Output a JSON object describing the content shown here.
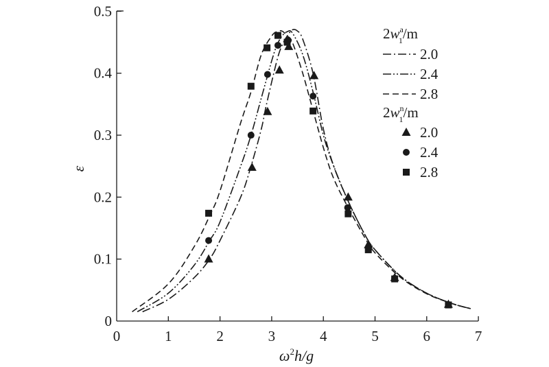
{
  "chart_data": {
    "type": "scatter",
    "title": "",
    "xlabel": {
      "pre": "ω",
      "sup": "2",
      "post": "h/g"
    },
    "ylabel": "ε",
    "xlim": [
      0,
      7
    ],
    "ylim": [
      0,
      0.5
    ],
    "x_ticks": [
      0,
      1,
      2,
      3,
      4,
      5,
      6,
      7
    ],
    "x_tick_labels": [
      "0",
      "1",
      "2",
      "3",
      "4",
      "5",
      "6",
      "7"
    ],
    "y_ticks": [
      0,
      0.1,
      0.2,
      0.3,
      0.4,
      0.5
    ],
    "y_tick_labels": [
      "0",
      "0.1",
      "0.2",
      "0.3",
      "0.4",
      "0.5"
    ],
    "grid": false,
    "legend_position": "top-right",
    "legend_groups": [
      {
        "base": "2w",
        "sup": "a",
        "sub": "1",
        "unit": "/m"
      },
      {
        "base": "2w",
        "sup": "n",
        "sub": "1",
        "unit": "/m"
      }
    ],
    "curves": [
      {
        "name": "2.0",
        "group": 0,
        "style": "dashdot",
        "x": [
          0.5,
          1.0,
          1.5,
          1.8,
          2.0,
          2.4,
          2.6,
          2.8,
          2.9,
          3.1,
          3.2,
          3.3,
          3.4,
          3.5,
          3.6,
          3.8,
          4.0,
          4.2,
          4.5,
          4.8,
          5.0,
          5.5,
          6.0,
          6.5,
          6.85
        ],
        "y": [
          0.015,
          0.035,
          0.07,
          0.1,
          0.13,
          0.2,
          0.25,
          0.31,
          0.35,
          0.42,
          0.445,
          0.46,
          0.47,
          0.468,
          0.455,
          0.4,
          0.31,
          0.25,
          0.19,
          0.14,
          0.115,
          0.072,
          0.045,
          0.028,
          0.02
        ]
      },
      {
        "name": "2.4",
        "group": 0,
        "style": "dashdotdot",
        "x": [
          0.4,
          1.0,
          1.5,
          1.8,
          2.0,
          2.4,
          2.6,
          2.8,
          3.0,
          3.1,
          3.2,
          3.3,
          3.4,
          3.6,
          3.8,
          4.0,
          4.2,
          4.5,
          4.8,
          5.0,
          5.5,
          6.0,
          6.5,
          6.85
        ],
        "y": [
          0.015,
          0.045,
          0.09,
          0.13,
          0.16,
          0.25,
          0.3,
          0.36,
          0.42,
          0.445,
          0.46,
          0.467,
          0.465,
          0.43,
          0.37,
          0.3,
          0.25,
          0.19,
          0.14,
          0.115,
          0.072,
          0.045,
          0.028,
          0.02
        ]
      },
      {
        "name": "2.8",
        "group": 0,
        "style": "dashed",
        "x": [
          0.3,
          1.0,
          1.5,
          1.8,
          2.0,
          2.4,
          2.6,
          2.8,
          3.0,
          3.1,
          3.2,
          3.3,
          3.4,
          3.6,
          3.8,
          4.0,
          4.2,
          4.5,
          4.8,
          5.0,
          5.5,
          6.0,
          6.5,
          6.85
        ],
        "y": [
          0.015,
          0.06,
          0.12,
          0.17,
          0.21,
          0.32,
          0.37,
          0.43,
          0.46,
          0.467,
          0.468,
          0.46,
          0.45,
          0.4,
          0.34,
          0.28,
          0.23,
          0.18,
          0.135,
          0.11,
          0.07,
          0.044,
          0.028,
          0.02
        ]
      }
    ],
    "series": [
      {
        "name": "2.0",
        "group": 1,
        "marker": "triangle",
        "x": [
          1.78,
          2.62,
          2.92,
          3.15,
          3.33,
          3.82,
          4.48,
          4.87,
          5.38,
          6.42
        ],
        "y": [
          0.1,
          0.248,
          0.338,
          0.405,
          0.443,
          0.396,
          0.2,
          0.123,
          0.07,
          0.027
        ]
      },
      {
        "name": "2.4",
        "group": 1,
        "marker": "circle",
        "x": [
          1.78,
          2.6,
          2.92,
          3.12,
          3.32,
          3.8,
          4.47,
          4.87,
          5.38,
          6.42
        ],
        "y": [
          0.13,
          0.3,
          0.398,
          0.445,
          0.453,
          0.363,
          0.183,
          0.118,
          0.069,
          0.026
        ]
      },
      {
        "name": "2.8",
        "group": 1,
        "marker": "square",
        "x": [
          1.78,
          2.6,
          2.91,
          3.12,
          3.3,
          3.8,
          4.48,
          4.87,
          5.38,
          6.42
        ],
        "y": [
          0.174,
          0.379,
          0.441,
          0.461,
          0.45,
          0.339,
          0.173,
          0.115,
          0.068,
          0.026
        ]
      }
    ]
  }
}
